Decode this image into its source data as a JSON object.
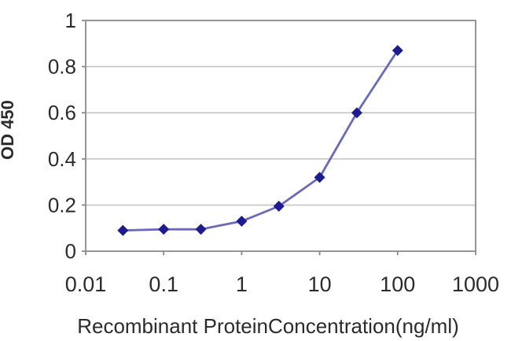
{
  "chart_data": {
    "type": "line",
    "title": "",
    "xlabel": "Recombinant ProteinConcentration(ng/ml)",
    "ylabel": "OD 450",
    "x_scale": "log10",
    "x": [
      0.03,
      0.1,
      0.3,
      1,
      3,
      10,
      30,
      100
    ],
    "y": [
      0.09,
      0.095,
      0.095,
      0.13,
      0.195,
      0.32,
      0.6,
      0.87
    ],
    "xlim": [
      0.01,
      1000
    ],
    "ylim": [
      0,
      1
    ],
    "x_ticks": [
      0.01,
      0.1,
      1,
      10,
      100,
      1000
    ],
    "x_tick_labels": [
      "0.01",
      "0.1",
      "1",
      "10",
      "100",
      "1000"
    ],
    "y_ticks": [
      0,
      0.2,
      0.4,
      0.6,
      0.8,
      1
    ],
    "y_tick_labels": [
      "0",
      "0.2",
      "0.4",
      "0.6",
      "0.8",
      "1"
    ],
    "grid": "horizontal",
    "legend": "none",
    "marker": "diamond",
    "colors": {
      "line": "#6a6ab8",
      "marker": "#1c1c8e",
      "grid": "#c6c6c6",
      "axis": "#8a8a8a",
      "text": "#2b2b2b",
      "background": "#ffffff"
    }
  }
}
